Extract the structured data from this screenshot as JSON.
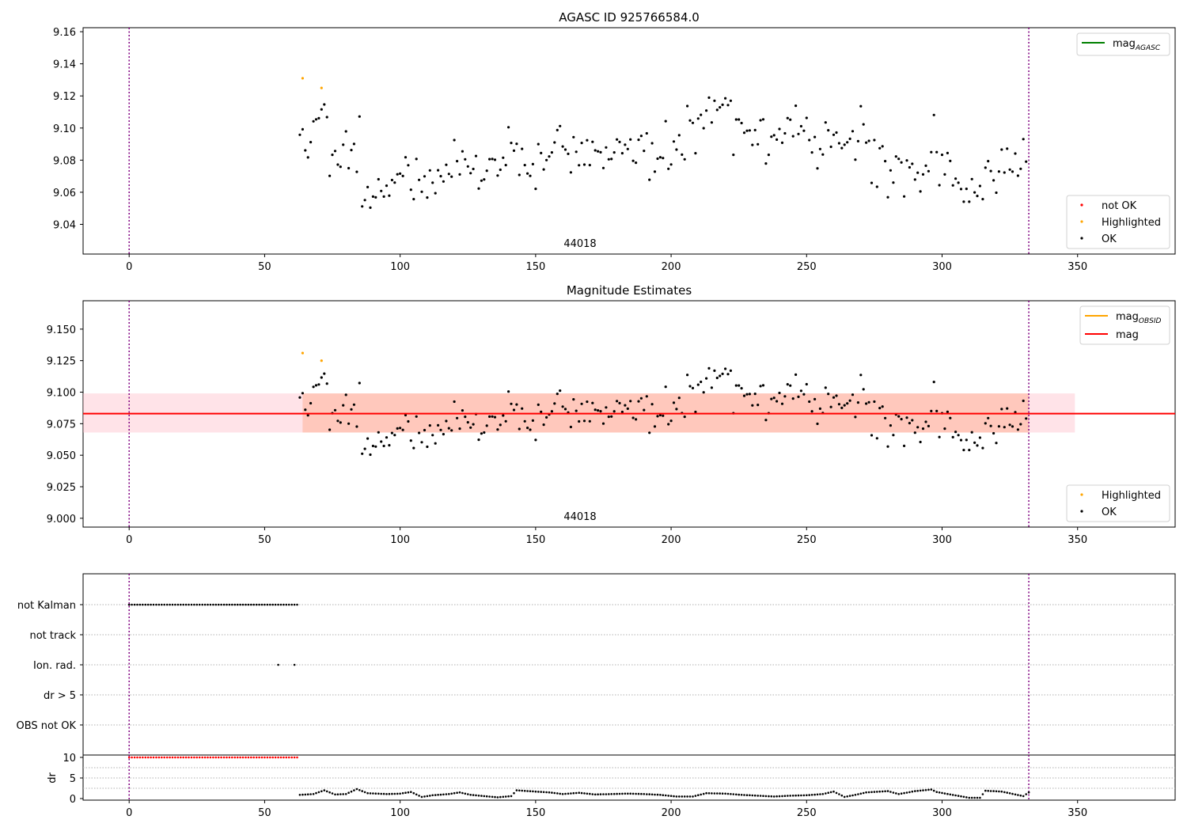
{
  "chart_data": [
    {
      "type": "scatter",
      "title": "AGASC ID 925766584.0",
      "annotation": "44018",
      "xlim": [
        -17,
        386
      ],
      "ylim": [
        9.0215,
        9.1625
      ],
      "xticks": [
        0,
        50,
        100,
        150,
        200,
        250,
        300,
        350
      ],
      "yticks": [
        9.04,
        9.06,
        9.08,
        9.1,
        9.12,
        9.14,
        9.16
      ],
      "ytick_labels": [
        "9.04",
        "9.06",
        "9.08",
        "9.10",
        "9.12",
        "9.14",
        "9.16"
      ],
      "vlines": [
        0,
        332
      ],
      "legend_upper": {
        "placement": "top-right",
        "entries": [
          {
            "label": "mag",
            "sub": "AGASC",
            "color": "#008000"
          }
        ]
      },
      "legend_lower": {
        "placement": "bottom-right",
        "entries": [
          {
            "label": "not OK",
            "color": "#ff0000"
          },
          {
            "label": "Highlighted",
            "color": "#ffa500"
          },
          {
            "label": "OK",
            "color": "#000000"
          }
        ]
      },
      "series": [
        {
          "name": "Highlighted",
          "color": "#ffa500",
          "points": [
            [
              64,
              9.131
            ],
            [
              71,
              9.125
            ]
          ]
        }
      ],
      "uses_ok_points": true
    },
    {
      "type": "scatter",
      "title": "Magnitude Estimates",
      "annotation": "44018",
      "xlim": [
        -17,
        386
      ],
      "ylim": [
        8.993,
        9.1725
      ],
      "xticks": [
        0,
        50,
        100,
        150,
        200,
        250,
        300,
        350
      ],
      "yticks": [
        9.0,
        9.025,
        9.05,
        9.075,
        9.1,
        9.125,
        9.15
      ],
      "ytick_labels": [
        "9.000",
        "9.025",
        "9.050",
        "9.075",
        "9.100",
        "9.125",
        "9.150"
      ],
      "vlines": [
        0,
        332
      ],
      "mag_line": {
        "value": 9.083,
        "color": "#ff0000",
        "x_range": [
          -17,
          386
        ]
      },
      "bands": [
        {
          "x_range": [
            -17,
            349
          ],
          "y_range": [
            9.068,
            9.099
          ],
          "color": "#ffc0cb"
        },
        {
          "x_range": [
            64,
            332
          ],
          "y_range": [
            9.068,
            9.099
          ],
          "color": "#ffa07a"
        }
      ],
      "legend_upper": {
        "placement": "top-right",
        "entries": [
          {
            "label": "mag",
            "sub": "OBSID",
            "color": "#ffa500"
          },
          {
            "label": "mag",
            "color": "#ff0000"
          }
        ]
      },
      "legend_lower": {
        "placement": "bottom-right",
        "entries": [
          {
            "label": "Highlighted",
            "color": "#ffa500"
          },
          {
            "label": "OK",
            "color": "#000000"
          }
        ]
      },
      "series": [
        {
          "name": "Highlighted",
          "color": "#ffa500",
          "points": [
            [
              64,
              9.131
            ],
            [
              71,
              9.125
            ]
          ]
        }
      ],
      "uses_ok_points": true
    },
    {
      "type": "scatter",
      "categories": [
        "not Kalman",
        "not track",
        "Ion. rad.",
        "dr > 5",
        "OBS not OK"
      ],
      "xlim": [
        -17,
        386
      ],
      "vlines": [
        0,
        332
      ],
      "flags": {
        "not Kalman": {
          "x_range": [
            0,
            62
          ],
          "step": 1
        },
        "not track": [],
        "Ion. rad.": [
          55,
          61
        ],
        "dr > 5": [],
        "OBS not OK": []
      }
    },
    {
      "type": "scatter",
      "ylabel": "dr",
      "xlim": [
        -17,
        386
      ],
      "ylim": [
        -0.5,
        10.5
      ],
      "xticks": [
        0,
        50,
        100,
        150,
        200,
        250,
        300,
        350
      ],
      "yticks": [
        0,
        5,
        10
      ],
      "ytick_labels": [
        "0",
        "5",
        "10"
      ],
      "vlines": [
        0,
        332
      ],
      "dr_flagged": {
        "x_range": [
          0,
          62
        ],
        "step": 1,
        "value": 10,
        "color": "#ff0000"
      },
      "dr_curve": [
        [
          63,
          0.9
        ],
        [
          68,
          1.1
        ],
        [
          72,
          2.0
        ],
        [
          76,
          1.0
        ],
        [
          80,
          1.1
        ],
        [
          84,
          2.3
        ],
        [
          88,
          1.3
        ],
        [
          95,
          1.1
        ],
        [
          100,
          1.2
        ],
        [
          104,
          1.6
        ],
        [
          108,
          0.4
        ],
        [
          112,
          0.8
        ],
        [
          118,
          1.1
        ],
        [
          122,
          1.5
        ],
        [
          126,
          0.9
        ],
        [
          131,
          0.6
        ],
        [
          136,
          0.3
        ],
        [
          141,
          0.6
        ],
        [
          143,
          2.0
        ],
        [
          150,
          1.7
        ],
        [
          155,
          1.5
        ],
        [
          160,
          1.1
        ],
        [
          166,
          1.4
        ],
        [
          172,
          1.0
        ],
        [
          178,
          1.1
        ],
        [
          184,
          1.2
        ],
        [
          190,
          1.1
        ],
        [
          196,
          0.9
        ],
        [
          202,
          0.5
        ],
        [
          208,
          0.5
        ],
        [
          213,
          1.3
        ],
        [
          220,
          1.2
        ],
        [
          226,
          0.9
        ],
        [
          232,
          0.7
        ],
        [
          238,
          0.5
        ],
        [
          244,
          0.7
        ],
        [
          250,
          0.8
        ],
        [
          256,
          1.1
        ],
        [
          260,
          1.7
        ],
        [
          264,
          0.4
        ],
        [
          268,
          0.9
        ],
        [
          272,
          1.5
        ],
        [
          280,
          1.8
        ],
        [
          284,
          1.1
        ],
        [
          290,
          1.8
        ],
        [
          296,
          2.2
        ],
        [
          298,
          1.6
        ],
        [
          303,
          1.0
        ],
        [
          310,
          0.2
        ],
        [
          314,
          0.2
        ],
        [
          316,
          1.9
        ],
        [
          322,
          1.7
        ],
        [
          327,
          1.0
        ],
        [
          330,
          0.6
        ],
        [
          332,
          1.5
        ]
      ]
    }
  ],
  "ok_points": [
    [
      63.0,
      9.0958
    ],
    [
      64.0,
      9.0992
    ],
    [
      65.0,
      9.0861
    ],
    [
      66.0,
      9.0817
    ],
    [
      67.0,
      9.0912
    ],
    [
      68.0,
      9.1042
    ],
    [
      69.0,
      9.1054
    ],
    [
      70.0,
      9.1061
    ],
    [
      71.0,
      9.1116
    ],
    [
      72.0,
      9.1147
    ],
    [
      73.0,
      9.1068
    ],
    [
      74.0,
      9.0702
    ],
    [
      75.0,
      9.0833
    ],
    [
      76.0,
      9.0857
    ],
    [
      77.0,
      9.0772
    ],
    [
      78.0,
      9.0759
    ],
    [
      79.0,
      9.0896
    ],
    [
      80.0,
      9.0979
    ],
    [
      81.0,
      9.075
    ],
    [
      82.0,
      9.0863
    ],
    [
      83.0,
      9.0901
    ],
    [
      84.0,
      9.0727
    ],
    [
      85.0,
      9.1072
    ],
    [
      86.0,
      9.0512
    ],
    [
      87.0,
      9.0551
    ],
    [
      88.0,
      9.0632
    ],
    [
      89.0,
      9.0504
    ],
    [
      90.0,
      9.0573
    ],
    [
      91.0,
      9.0568
    ],
    [
      92.0,
      9.0681
    ],
    [
      93.0,
      9.0608
    ],
    [
      94.0,
      9.0573
    ],
    [
      95.0,
      9.0641
    ],
    [
      96.0,
      9.0579
    ],
    [
      97.0,
      9.0676
    ],
    [
      98.0,
      9.066
    ],
    [
      99.0,
      9.0712
    ],
    [
      100.0,
      9.0716
    ],
    [
      101.0,
      9.0701
    ],
    [
      102.0,
      9.0818
    ],
    [
      103.0,
      9.0768
    ],
    [
      104.0,
      9.0616
    ],
    [
      105.0,
      9.0557
    ],
    [
      106.0,
      9.0807
    ],
    [
      107.0,
      9.0677
    ],
    [
      108.0,
      9.0603
    ],
    [
      109.0,
      9.0699
    ],
    [
      110.0,
      9.0567
    ],
    [
      111.0,
      9.0736
    ],
    [
      112.0,
      9.0659
    ],
    [
      113.0,
      9.0594
    ],
    [
      114.0,
      9.0737
    ],
    [
      115.0,
      9.07
    ],
    [
      116.0,
      9.0667
    ],
    [
      117.0,
      9.0771
    ],
    [
      118.0,
      9.0714
    ],
    [
      119.0,
      9.0697
    ],
    [
      120.0,
      9.0925
    ],
    [
      121.0,
      9.0794
    ],
    [
      122.0,
      9.0711
    ],
    [
      123.0,
      9.0855
    ],
    [
      124.0,
      9.0805
    ],
    [
      125.0,
      9.0761
    ],
    [
      126.0,
      9.0719
    ],
    [
      127.0,
      9.0745
    ],
    [
      128.0,
      9.0826
    ],
    [
      129.0,
      9.0623
    ],
    [
      130.0,
      9.0672
    ],
    [
      131.0,
      9.068
    ],
    [
      132.0,
      9.0734
    ],
    [
      133.0,
      9.0806
    ],
    [
      134.0,
      9.0807
    ],
    [
      135.0,
      9.0802
    ],
    [
      136.0,
      9.0704
    ],
    [
      137.0,
      9.074
    ],
    [
      138.0,
      9.0815
    ],
    [
      139.0,
      9.0769
    ],
    [
      140.0,
      9.1005
    ],
    [
      141.0,
      9.0907
    ],
    [
      142.0,
      9.0859
    ],
    [
      143.0,
      9.0902
    ],
    [
      144.0,
      9.0708
    ],
    [
      145.0,
      9.087
    ],
    [
      146.0,
      9.0769
    ],
    [
      147.0,
      9.0717
    ],
    [
      148.0,
      9.0702
    ],
    [
      149.0,
      9.0775
    ],
    [
      150.0,
      9.0621
    ],
    [
      151.0,
      9.09
    ],
    [
      152.0,
      9.0844
    ],
    [
      153.0,
      9.0742
    ],
    [
      154.0,
      9.08
    ],
    [
      155.0,
      9.0823
    ],
    [
      156.0,
      9.0848
    ],
    [
      157.0,
      9.091
    ],
    [
      158.0,
      9.0987
    ],
    [
      159.0,
      9.1012
    ],
    [
      160.0,
      9.0885
    ],
    [
      161.0,
      9.0866
    ],
    [
      162.0,
      9.0839
    ],
    [
      163.0,
      9.0724
    ],
    [
      164.0,
      9.0943
    ],
    [
      165.0,
      9.0852
    ],
    [
      166.0,
      9.0768
    ],
    [
      167.0,
      9.0907
    ],
    [
      168.0,
      9.0772
    ],
    [
      169.0,
      9.0924
    ],
    [
      170.0,
      9.0769
    ],
    [
      171.0,
      9.0914
    ],
    [
      172.0,
      9.0861
    ],
    [
      173.0,
      9.0855
    ],
    [
      174.0,
      9.0849
    ],
    [
      175.0,
      9.0751
    ],
    [
      176.0,
      9.0879
    ],
    [
      177.0,
      9.0805
    ],
    [
      178.0,
      9.0807
    ],
    [
      179.0,
      9.0848
    ],
    [
      180.0,
      9.0929
    ],
    [
      181.0,
      9.0913
    ],
    [
      182.0,
      9.0843
    ],
    [
      183.0,
      9.0896
    ],
    [
      184.0,
      9.0869
    ],
    [
      185.0,
      9.0929
    ],
    [
      186.0,
      9.0796
    ],
    [
      187.0,
      9.0784
    ],
    [
      188.0,
      9.0927
    ],
    [
      189.0,
      9.0951
    ],
    [
      190.0,
      9.0858
    ],
    [
      191.0,
      9.0967
    ],
    [
      192.0,
      9.0678
    ],
    [
      193.0,
      9.0905
    ],
    [
      194.0,
      9.0728
    ],
    [
      195.0,
      9.0809
    ],
    [
      196.0,
      9.0818
    ],
    [
      197.0,
      9.0813
    ],
    [
      198.0,
      9.1043
    ],
    [
      199.0,
      9.0746
    ],
    [
      200.0,
      9.0773
    ],
    [
      201.0,
      9.0916
    ],
    [
      202.0,
      9.0866
    ],
    [
      203.0,
      9.0955
    ],
    [
      204.0,
      9.0834
    ],
    [
      205.0,
      9.0805
    ],
    [
      206.0,
      9.1137
    ],
    [
      207.0,
      9.1047
    ],
    [
      208.0,
      9.1032
    ],
    [
      209.0,
      9.0843
    ],
    [
      210.0,
      9.1059
    ],
    [
      211.0,
      9.1082
    ],
    [
      212.0,
      9.0999
    ],
    [
      213.0,
      9.1109
    ],
    [
      214.0,
      9.1189
    ],
    [
      215.0,
      9.1035
    ],
    [
      216.0,
      9.117
    ],
    [
      217.0,
      9.1113
    ],
    [
      218.0,
      9.1129
    ],
    [
      219.0,
      9.1145
    ],
    [
      220.0,
      9.1185
    ],
    [
      221.0,
      9.1143
    ],
    [
      222.0,
      9.117
    ],
    [
      223.0,
      9.0833
    ],
    [
      224.0,
      9.1053
    ],
    [
      225.0,
      9.1053
    ],
    [
      226.0,
      9.1031
    ],
    [
      227.0,
      9.0971
    ],
    [
      228.0,
      9.0983
    ],
    [
      229.0,
      9.0985
    ],
    [
      230.0,
      9.0895
    ],
    [
      231.0,
      9.0987
    ],
    [
      232.0,
      9.0899
    ],
    [
      233.0,
      9.1048
    ],
    [
      234.0,
      9.1054
    ],
    [
      235.0,
      9.0779
    ],
    [
      236.0,
      9.0833
    ],
    [
      237.0,
      9.0946
    ],
    [
      238.0,
      9.0955
    ],
    [
      239.0,
      9.0928
    ],
    [
      240.0,
      9.0994
    ],
    [
      241.0,
      9.0908
    ],
    [
      242.0,
      9.0967
    ],
    [
      243.0,
      9.1062
    ],
    [
      244.0,
      9.1052
    ],
    [
      245.0,
      9.0949
    ],
    [
      246.0,
      9.1139
    ],
    [
      247.0,
      9.0963
    ],
    [
      248.0,
      9.1011
    ],
    [
      249.0,
      9.0983
    ],
    [
      250.0,
      9.1063
    ],
    [
      251.0,
      9.0925
    ],
    [
      252.0,
      9.0848
    ],
    [
      253.0,
      9.0944
    ],
    [
      254.0,
      9.0749
    ],
    [
      255.0,
      9.0869
    ],
    [
      256.0,
      9.0835
    ],
    [
      257.0,
      9.1035
    ],
    [
      258.0,
      9.0986
    ],
    [
      259.0,
      9.0883
    ],
    [
      260.0,
      9.0958
    ],
    [
      261.0,
      9.0972
    ],
    [
      262.0,
      9.0905
    ],
    [
      263.0,
      9.0875
    ],
    [
      264.0,
      9.0896
    ],
    [
      265.0,
      9.0911
    ],
    [
      266.0,
      9.0933
    ],
    [
      267.0,
      9.098
    ],
    [
      268.0,
      9.0803
    ],
    [
      269.0,
      9.0918
    ],
    [
      270.0,
      9.1136
    ],
    [
      271.0,
      9.1023
    ],
    [
      272.0,
      9.0909
    ],
    [
      273.0,
      9.092
    ],
    [
      274.0,
      9.0658
    ],
    [
      275.0,
      9.0925
    ],
    [
      276.0,
      9.0634
    ],
    [
      277.0,
      9.0874
    ],
    [
      278.0,
      9.0886
    ],
    [
      279.0,
      9.0794
    ],
    [
      280.0,
      9.0569
    ],
    [
      281.0,
      9.0736
    ],
    [
      282.0,
      9.066
    ],
    [
      283.0,
      9.0823
    ],
    [
      284.0,
      9.0808
    ],
    [
      285.0,
      9.0786
    ],
    [
      286.0,
      9.0574
    ],
    [
      287.0,
      9.0798
    ],
    [
      288.0,
      9.0755
    ],
    [
      289.0,
      9.0777
    ],
    [
      290.0,
      9.0679
    ],
    [
      291.0,
      9.0722
    ],
    [
      292.0,
      9.0605
    ],
    [
      293.0,
      9.0711
    ],
    [
      294.0,
      9.0765
    ],
    [
      295.0,
      9.0731
    ],
    [
      296.0,
      9.085
    ],
    [
      297.0,
      9.1081
    ],
    [
      298.0,
      9.085
    ],
    [
      299.0,
      9.0644
    ],
    [
      300.0,
      9.0833
    ],
    [
      301.0,
      9.0711
    ],
    [
      302.0,
      9.0844
    ],
    [
      303.0,
      9.0795
    ],
    [
      304.0,
      9.0643
    ],
    [
      305.0,
      9.0685
    ],
    [
      306.0,
      9.0659
    ],
    [
      307.0,
      9.062
    ],
    [
      308.0,
      9.0541
    ],
    [
      309.0,
      9.0621
    ],
    [
      310.0,
      9.0541
    ],
    [
      311.0,
      9.0682
    ],
    [
      312.0,
      9.0599
    ],
    [
      313.0,
      9.0577
    ],
    [
      314.0,
      9.0639
    ],
    [
      315.0,
      9.0557
    ],
    [
      316.0,
      9.0753
    ],
    [
      317.0,
      9.0794
    ],
    [
      318.0,
      9.0732
    ],
    [
      319.0,
      9.0674
    ],
    [
      320.0,
      9.0597
    ],
    [
      321.0,
      9.0729
    ],
    [
      322.0,
      9.0866
    ],
    [
      323.0,
      9.0723
    ],
    [
      324.0,
      9.0871
    ],
    [
      325.0,
      9.0741
    ],
    [
      326.0,
      9.0728
    ],
    [
      327.0,
      9.0841
    ],
    [
      328.0,
      9.0703
    ],
    [
      329.0,
      9.0746
    ],
    [
      330.0,
      9.0931
    ],
    [
      331.0,
      9.0791
    ]
  ]
}
